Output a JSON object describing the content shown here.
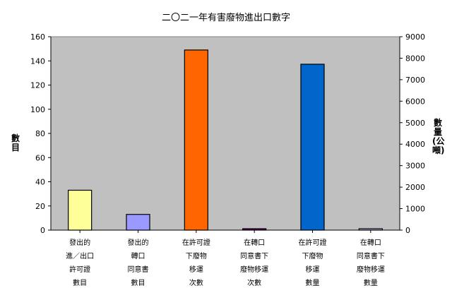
{
  "chart_data": {
    "type": "bar",
    "title": "二〇二一年有害廢物進出口數字",
    "ylabel_left": "數目",
    "ylabel_right": "數量(公噸)",
    "categories": [
      "發出的\n進／出口\n許可證\n數目",
      "發出的\n轉口\n同意書\n數目",
      "在許可證\n下廢物\n移運\n次數",
      "在轉口\n同意書下\n廢物移運\n次數",
      "在許可證\n下廢物\n移運\n數量",
      "在轉口\n同意書下\n廢物移運\n數量"
    ],
    "left_axis": {
      "ylim": [
        0,
        160
      ],
      "ticks": [
        "0",
        "20",
        "40",
        "60",
        "80",
        "100",
        "120",
        "140",
        "160"
      ]
    },
    "right_axis": {
      "ylim": [
        0,
        9000
      ],
      "ticks": [
        "0",
        "1000",
        "2000",
        "3000",
        "4000",
        "5000",
        "6000",
        "7000",
        "8000",
        "9000"
      ]
    },
    "bars": [
      {
        "value": 33,
        "axis": "left",
        "color": "#FFFF99"
      },
      {
        "value": 13,
        "axis": "left",
        "color": "#9999FF"
      },
      {
        "value": 149,
        "axis": "left",
        "color": "#FF6600"
      },
      {
        "value": 1,
        "axis": "left",
        "color": "#800080"
      },
      {
        "value": 7720,
        "axis": "right",
        "color": "#0066CC"
      },
      {
        "value": 50,
        "axis": "right",
        "color": "#CCCCFF"
      }
    ],
    "plot_background": "#C0C0C0",
    "grid": false
  }
}
